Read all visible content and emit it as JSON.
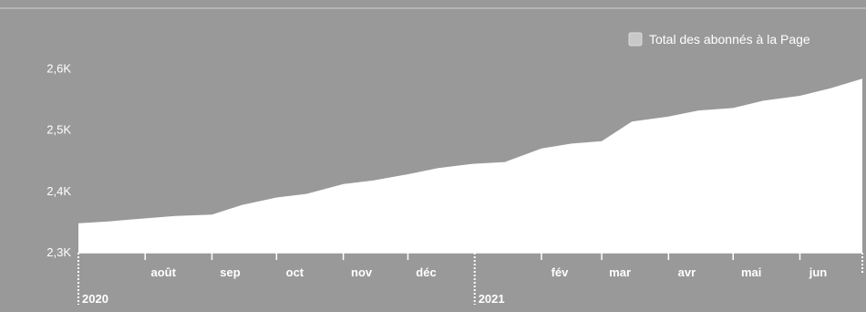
{
  "chart_data": {
    "type": "area",
    "series": [
      {
        "name": "Total des abonnés à la Page",
        "color": "#ffffff",
        "x": [
          "2020-07-01",
          "2020-07-15",
          "2020-08-01",
          "2020-08-15",
          "2020-09-01",
          "2020-09-15",
          "2020-10-01",
          "2020-10-15",
          "2020-11-01",
          "2020-11-15",
          "2020-12-01",
          "2020-12-15",
          "2020-12-31",
          "2021-01-15",
          "2021-02-01",
          "2021-02-15",
          "2021-03-01",
          "2021-03-15",
          "2021-04-01",
          "2021-04-15",
          "2021-05-01",
          "2021-05-15",
          "2021-06-01",
          "2021-06-15",
          "2021-06-30"
        ],
        "values": [
          2348,
          2351,
          2356,
          2360,
          2362,
          2378,
          2390,
          2396,
          2412,
          2418,
          2428,
          2438,
          2445,
          2448,
          2470,
          2478,
          2482,
          2514,
          2522,
          2532,
          2536,
          2548,
          2556,
          2568,
          2584
        ]
      }
    ],
    "y_ticks": [
      {
        "value": 2300,
        "label": "2,3K"
      },
      {
        "value": 2400,
        "label": "2,4K"
      },
      {
        "value": 2500,
        "label": "2,5K"
      },
      {
        "value": 2600,
        "label": "2,6K"
      }
    ],
    "ylim": [
      2300,
      2620
    ],
    "xlim": [
      "2020-07-01",
      "2021-06-30"
    ],
    "x_month_ticks": [
      {
        "date": "2020-08-01",
        "label": "août"
      },
      {
        "date": "2020-09-01",
        "label": "sep"
      },
      {
        "date": "2020-10-01",
        "label": "oct"
      },
      {
        "date": "2020-11-01",
        "label": "nov"
      },
      {
        "date": "2020-12-01",
        "label": "déc"
      },
      {
        "date": "2021-02-01",
        "label": "fév"
      },
      {
        "date": "2021-03-01",
        "label": "mar"
      },
      {
        "date": "2021-04-01",
        "label": "avr"
      },
      {
        "date": "2021-05-01",
        "label": "mai"
      },
      {
        "date": "2021-06-01",
        "label": "jun"
      }
    ],
    "x_year_ticks": [
      {
        "date": "2020-07-01",
        "label": "2020"
      },
      {
        "date": "2021-01-01",
        "label": "2021"
      }
    ],
    "legend": {
      "position": "top-right",
      "label": "Total des abonnés à la Page",
      "swatch_color": "#c8c8c8"
    },
    "grid": false,
    "background": "#999999"
  }
}
